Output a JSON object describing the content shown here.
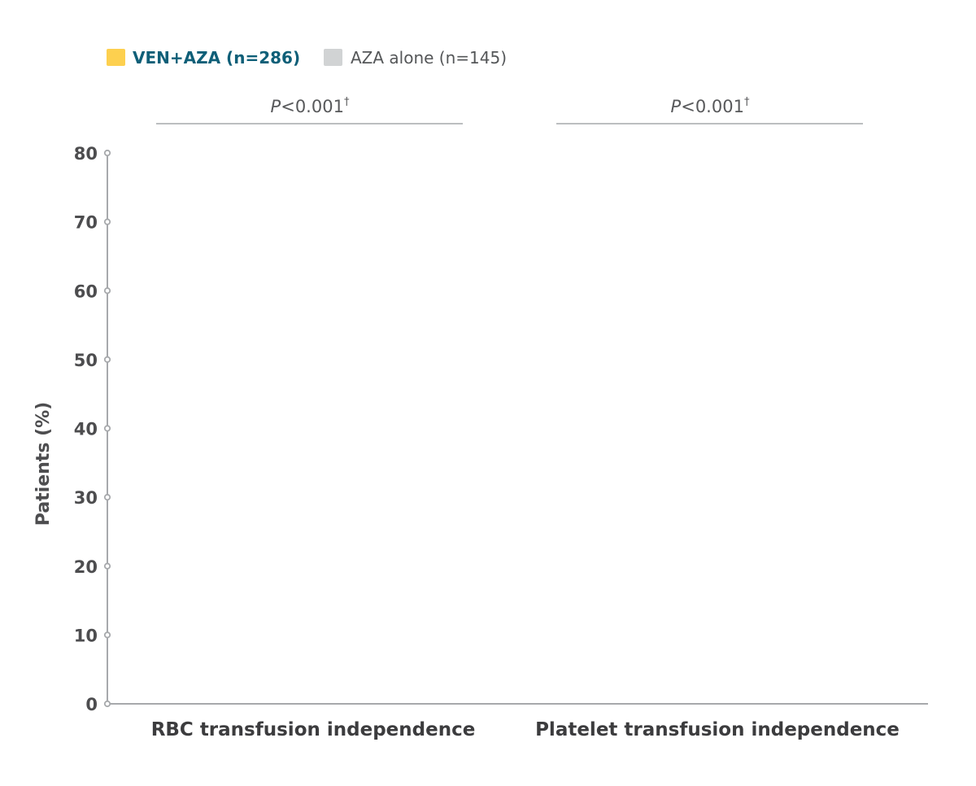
{
  "chart_data": {
    "type": "bar",
    "categories": [
      "RBC transfusion independence",
      "Platelet transfusion independence"
    ],
    "series": [
      {
        "name": "VEN+AZA (n=286)",
        "values": [
          null,
          null
        ]
      },
      {
        "name": "AZA alone (n=145)",
        "values": [
          null,
          null
        ]
      }
    ],
    "title": "",
    "xlabel": "",
    "ylabel": "Patients (%)",
    "ylim": [
      0,
      80
    ],
    "yticks": [
      0,
      10,
      20,
      30,
      40,
      50,
      60,
      70,
      80
    ],
    "ytick_labels": [
      "0",
      "10",
      "20",
      "30",
      "40",
      "50",
      "60",
      "70",
      "80"
    ],
    "legend_position": "top-left",
    "grid": false,
    "annotations": [
      {
        "category": "RBC transfusion independence",
        "italic": "P",
        "text": "<0.001",
        "sup": "†"
      },
      {
        "category": "Platelet transfusion independence",
        "italic": "P",
        "text": "<0.001",
        "sup": "†"
      }
    ],
    "colors": {
      "ven_aza_swatch": "#fdd04f",
      "ven_aza_text": "#0f5f78",
      "aza_swatch": "#d1d3d4",
      "aza_text": "#555759",
      "axis": "#a7a9ac",
      "tick_text": "#4d4d4f",
      "category_text": "#3c3c3e",
      "pvalue_text": "#58595b",
      "bracket": "#bcbec0"
    }
  }
}
